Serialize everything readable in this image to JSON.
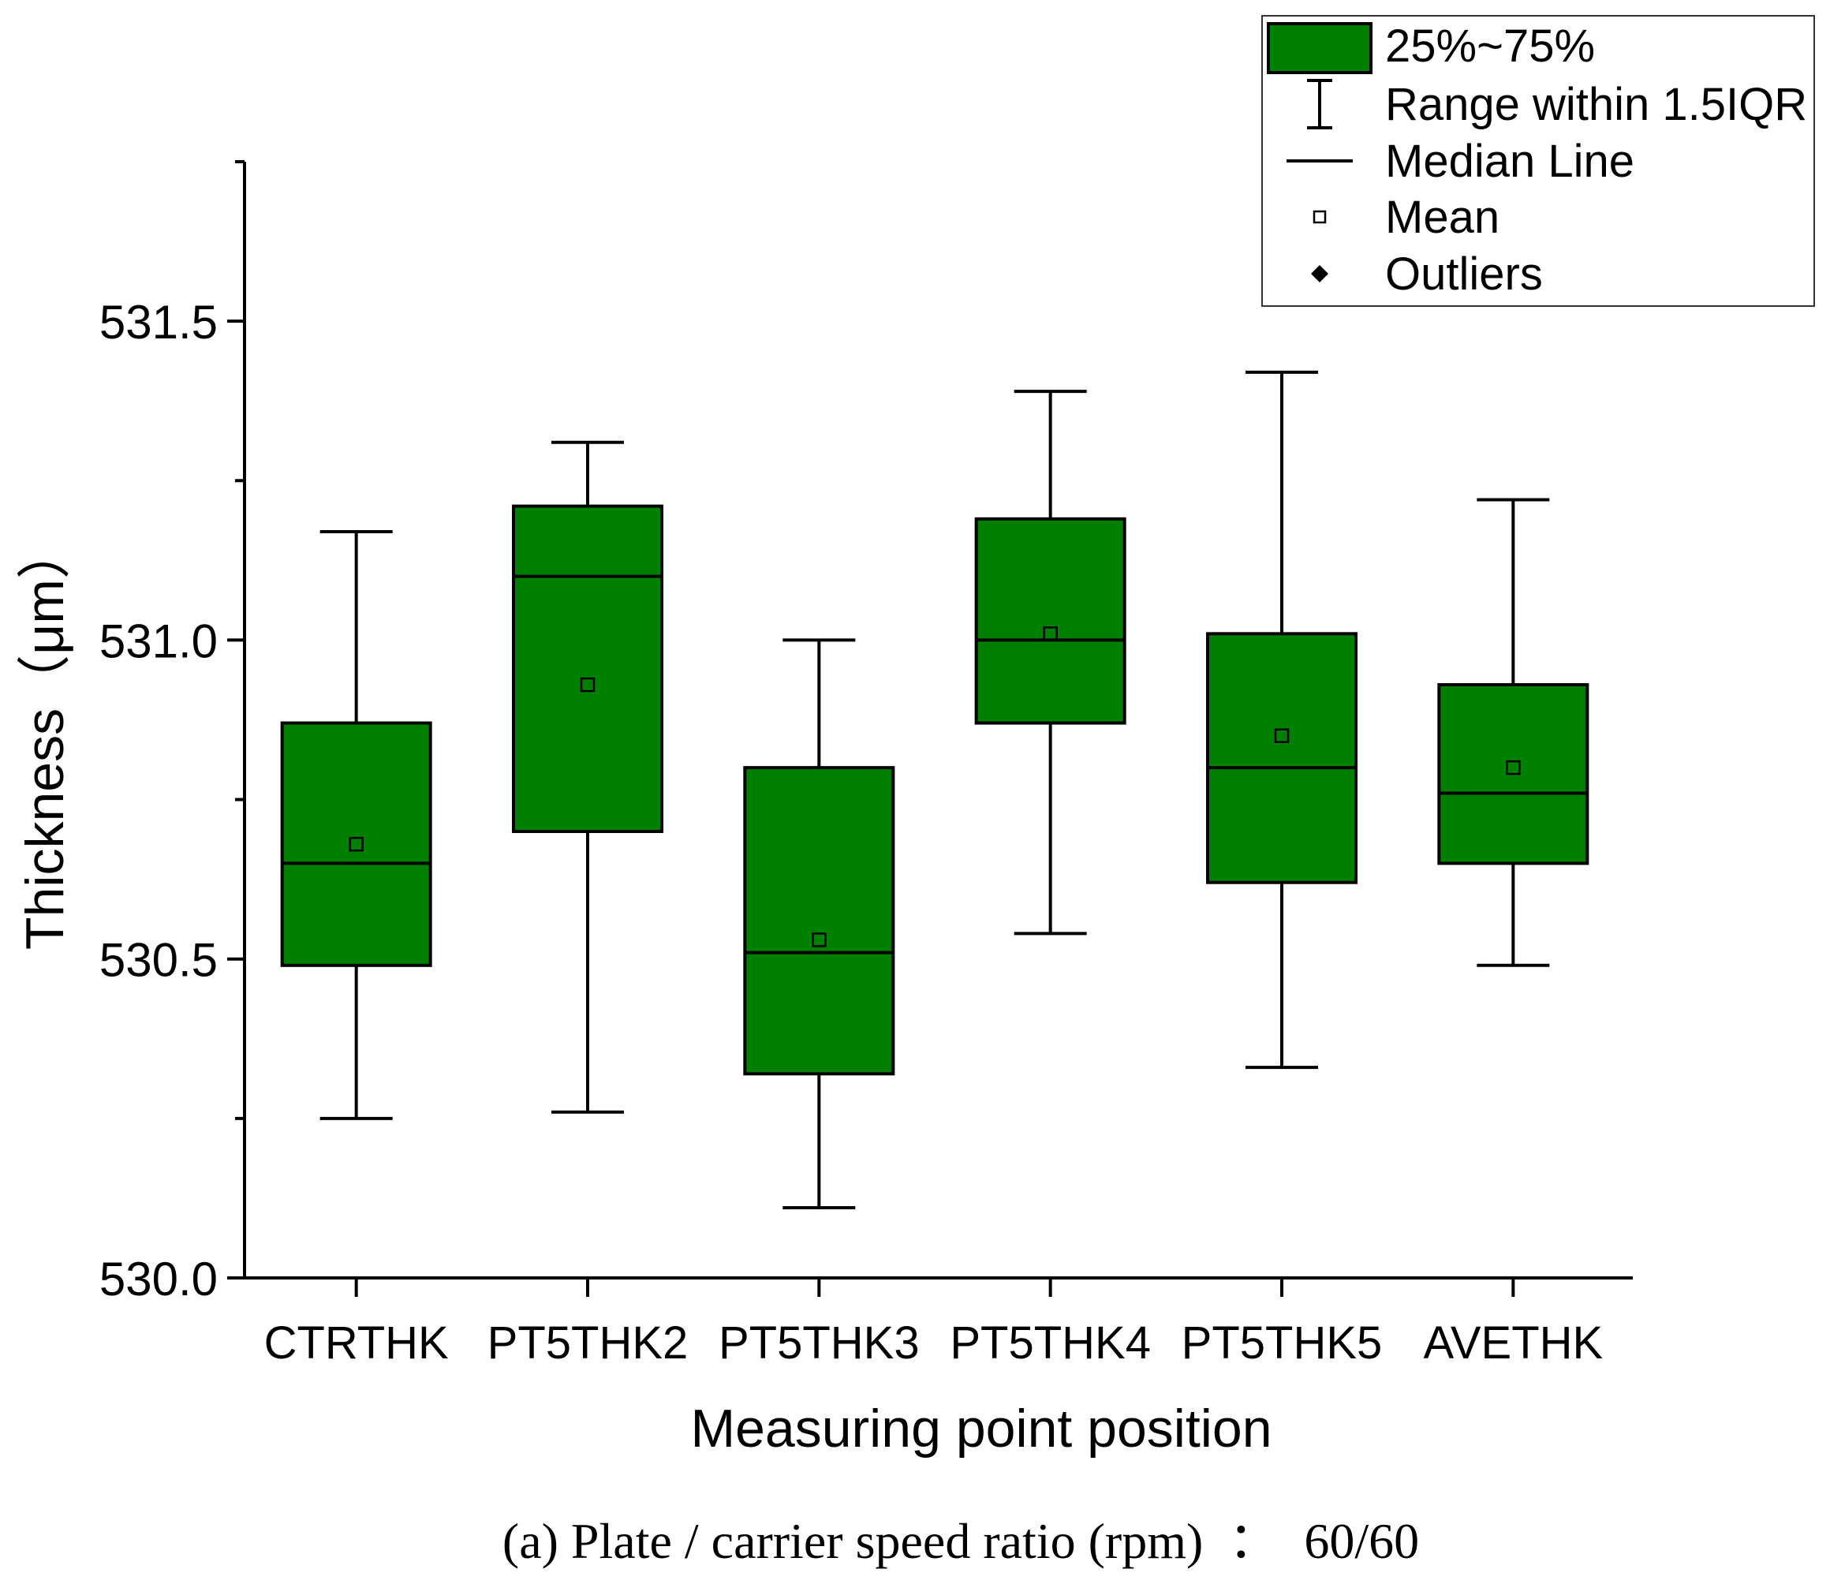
{
  "chart_data": {
    "type": "box",
    "caption": "(a) Plate / carrier speed ratio (rpm)  ：  60/60",
    "xlabel": "Measuring point position",
    "ylabel": "Thickness（μm）",
    "ylim": [
      530.0,
      531.75
    ],
    "yticks": [
      530.0,
      530.5,
      531.0,
      531.5
    ],
    "ytick_labels": [
      "530.0",
      "530.5",
      "531.0",
      "531.5"
    ],
    "ymajor_step": 0.5,
    "yminor_step": 0.25,
    "categories": [
      "CTRTHK",
      "PT5THK2",
      "PT5THK3",
      "PT5THK4",
      "PT5THK5",
      "AVETHK"
    ],
    "boxes": [
      {
        "label": "CTRTHK",
        "whisker_low": 530.25,
        "q1": 530.49,
        "median": 530.65,
        "q3": 530.87,
        "whisker_high": 531.17,
        "mean": 530.68
      },
      {
        "label": "PT5THK2",
        "whisker_low": 530.26,
        "q1": 530.7,
        "median": 531.1,
        "q3": 531.21,
        "whisker_high": 531.31,
        "mean": 530.93
      },
      {
        "label": "PT5THK3",
        "whisker_low": 530.11,
        "q1": 530.32,
        "median": 530.51,
        "q3": 530.8,
        "whisker_high": 531.0,
        "mean": 530.53
      },
      {
        "label": "PT5THK4",
        "whisker_low": 530.54,
        "q1": 530.87,
        "median": 531.0,
        "q3": 531.19,
        "whisker_high": 531.39,
        "mean": 531.01
      },
      {
        "label": "PT5THK5",
        "whisker_low": 530.33,
        "q1": 530.62,
        "median": 530.8,
        "q3": 531.01,
        "whisker_high": 531.42,
        "mean": 530.85
      },
      {
        "label": "AVETHK",
        "whisker_low": 530.49,
        "q1": 530.65,
        "median": 530.76,
        "q3": 530.93,
        "whisker_high": 531.22,
        "mean": 530.8
      }
    ],
    "legend": {
      "position": "top-right",
      "entries": [
        {
          "key": "box",
          "label": "25%~75%"
        },
        {
          "key": "whisker",
          "label": "Range within 1.5IQR"
        },
        {
          "key": "median",
          "label": "Median Line"
        },
        {
          "key": "mean",
          "label": "Mean"
        },
        {
          "key": "outlier",
          "label": "Outliers"
        }
      ]
    },
    "colors": {
      "box_fill": "#008000",
      "stroke": "#000000",
      "background": "#ffffff"
    }
  }
}
